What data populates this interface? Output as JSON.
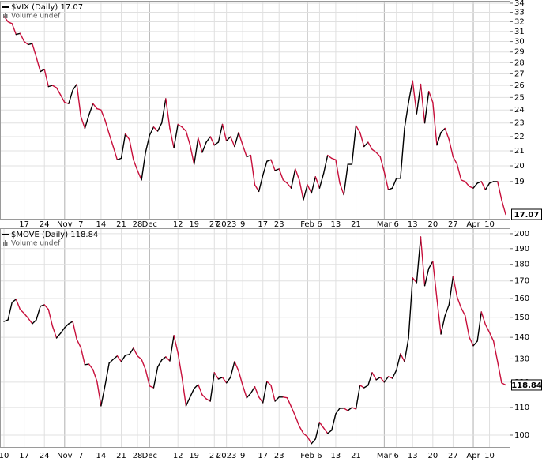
{
  "chart_data": [
    {
      "type": "line",
      "title": "$VIX (Daily) 17.07",
      "subtitle": "Volume undef",
      "log_scale": true,
      "grid": true,
      "up_color": "#000000",
      "down_color": "#c8103c",
      "ylim": [
        16.83,
        34.26
      ],
      "yticks": [
        19,
        20,
        21,
        22,
        23,
        24,
        25,
        26,
        27,
        28,
        29,
        30,
        31,
        32,
        33,
        34
      ],
      "categories": [
        null,
        null,
        null,
        null,
        null,
        "17",
        null,
        null,
        null,
        null,
        "24",
        null,
        null,
        null,
        null,
        "Nov",
        null,
        null,
        null,
        "7",
        null,
        null,
        null,
        null,
        "14",
        null,
        null,
        null,
        null,
        "21",
        null,
        null,
        null,
        "28",
        null,
        null,
        "Dec",
        null,
        null,
        null,
        null,
        null,
        null,
        "12",
        null,
        null,
        null,
        "19",
        null,
        null,
        null,
        null,
        "27",
        null,
        null,
        "2023",
        null,
        null,
        null,
        "9",
        null,
        null,
        null,
        null,
        "17",
        null,
        null,
        null,
        "23",
        null,
        null,
        null,
        null,
        null,
        null,
        "Feb",
        null,
        null,
        "6",
        null,
        null,
        null,
        "13",
        null,
        null,
        null,
        null,
        "21",
        null,
        null,
        null,
        null,
        null,
        null,
        "Mar",
        null,
        null,
        "6",
        null,
        null,
        null,
        "13",
        null,
        null,
        null,
        null,
        "20",
        null,
        null,
        null,
        null,
        "27",
        null,
        null,
        null,
        null,
        "Apr",
        null,
        null,
        null,
        "10",
        null,
        null,
        null,
        null
      ],
      "series": [
        {
          "name": "$VIX",
          "values": [
            32.6,
            32.0,
            31.8,
            30.7,
            30.8,
            30.0,
            29.7,
            29.8,
            28.5,
            27.2,
            27.4,
            25.9,
            26.0,
            25.8,
            25.2,
            24.6,
            24.5,
            25.6,
            26.1,
            23.5,
            22.6,
            23.6,
            24.5,
            24.1,
            24.0,
            23.2,
            22.2,
            21.3,
            20.4,
            20.5,
            22.2,
            21.8,
            20.4,
            19.7,
            19.1,
            20.9,
            22.1,
            22.7,
            22.4,
            23.0,
            24.9,
            22.6,
            21.2,
            22.9,
            22.7,
            22.4,
            21.4,
            20.1,
            21.9,
            20.9,
            21.6,
            22.0,
            21.4,
            21.6,
            22.9,
            21.7,
            22.0,
            21.3,
            22.3,
            21.4,
            20.6,
            20.7,
            18.8,
            18.4,
            19.4,
            20.3,
            20.4,
            19.7,
            19.8,
            19.1,
            18.9,
            18.6,
            19.8,
            19.1,
            17.9,
            18.8,
            18.3,
            19.3,
            18.6,
            19.5,
            20.7,
            20.5,
            20.4,
            18.9,
            18.2,
            20.1,
            20.1,
            22.8,
            22.3,
            21.3,
            21.6,
            21.1,
            20.9,
            20.6,
            19.6,
            18.5,
            18.6,
            19.2,
            19.2,
            22.6,
            24.6,
            26.4,
            23.7,
            26.1,
            23.0,
            25.5,
            24.6,
            21.4,
            22.3,
            22.6,
            21.8,
            20.6,
            20.1,
            19.1,
            19.0,
            18.7,
            18.6,
            18.9,
            19.0,
            18.5,
            18.9,
            19.0,
            19.0,
            17.9,
            17.07
          ]
        }
      ]
    },
    {
      "type": "line",
      "title": "$MOVE (Daily) 118.84",
      "subtitle": "Volume undef",
      "log_scale": true,
      "grid": true,
      "up_color": "#000000",
      "down_color": "#c8103c",
      "ylim": [
        96.0,
        203.8
      ],
      "yticks": [
        100,
        110,
        120,
        130,
        140,
        150,
        160,
        170,
        180,
        190,
        200
      ],
      "categories": [
        "10",
        null,
        null,
        null,
        null,
        "17",
        null,
        null,
        null,
        null,
        "24",
        null,
        null,
        null,
        null,
        "Nov",
        null,
        null,
        null,
        "7",
        null,
        null,
        null,
        null,
        "14",
        null,
        null,
        null,
        null,
        "21",
        null,
        null,
        null,
        "28",
        null,
        null,
        "Dec",
        null,
        null,
        null,
        null,
        null,
        null,
        "12",
        null,
        null,
        null,
        "19",
        null,
        null,
        null,
        null,
        "27",
        null,
        null,
        "2023",
        null,
        null,
        null,
        "9",
        null,
        null,
        null,
        null,
        "17",
        null,
        null,
        null,
        "23",
        null,
        null,
        null,
        null,
        null,
        null,
        "Feb",
        null,
        null,
        "6",
        null,
        null,
        null,
        "13",
        null,
        null,
        null,
        null,
        "21",
        null,
        null,
        null,
        null,
        null,
        null,
        "Mar",
        null,
        null,
        "6",
        null,
        null,
        null,
        "13",
        null,
        null,
        null,
        null,
        "20",
        null,
        null,
        null,
        null,
        "27",
        null,
        null,
        null,
        null,
        "Apr",
        null,
        null,
        null,
        "10",
        null,
        null,
        null,
        null
      ],
      "series": [
        {
          "name": "$MOVE",
          "values": [
            147.9,
            148.7,
            157.9,
            159.6,
            154.1,
            152.0,
            149.5,
            146.7,
            148.7,
            155.8,
            156.6,
            154.1,
            145.5,
            139.7,
            142.0,
            144.7,
            146.7,
            147.9,
            139.0,
            135.2,
            127.4,
            127.7,
            125.3,
            120.3,
            110.6,
            118.7,
            128.1,
            129.8,
            131.3,
            128.8,
            131.6,
            132.0,
            134.9,
            131.3,
            129.8,
            125.3,
            118.4,
            117.7,
            126.4,
            129.5,
            130.9,
            129.1,
            140.9,
            132.7,
            122.0,
            110.6,
            114.0,
            117.4,
            119.0,
            114.9,
            113.3,
            112.4,
            124.0,
            121.3,
            122.0,
            119.7,
            122.0,
            128.8,
            124.7,
            118.7,
            113.7,
            115.5,
            118.1,
            114.0,
            111.8,
            120.3,
            118.7,
            112.4,
            114.0,
            114.0,
            113.7,
            110.3,
            106.8,
            103.1,
            100.6,
            99.5,
            97.1,
            98.7,
            104.5,
            102.5,
            100.6,
            101.7,
            107.6,
            109.7,
            109.7,
            108.8,
            110.0,
            109.4,
            118.7,
            117.7,
            118.7,
            124.0,
            121.0,
            122.0,
            120.0,
            122.3,
            121.6,
            125.0,
            132.3,
            128.8,
            139.7,
            171.8,
            169.0,
            197.8,
            167.2,
            177.5,
            181.9,
            160.1,
            141.6,
            150.8,
            156.6,
            172.7,
            160.9,
            154.9,
            150.8,
            140.1,
            136.0,
            138.2,
            152.8,
            146.3,
            142.4,
            138.2,
            128.8,
            119.7,
            118.84
          ]
        }
      ]
    }
  ]
}
